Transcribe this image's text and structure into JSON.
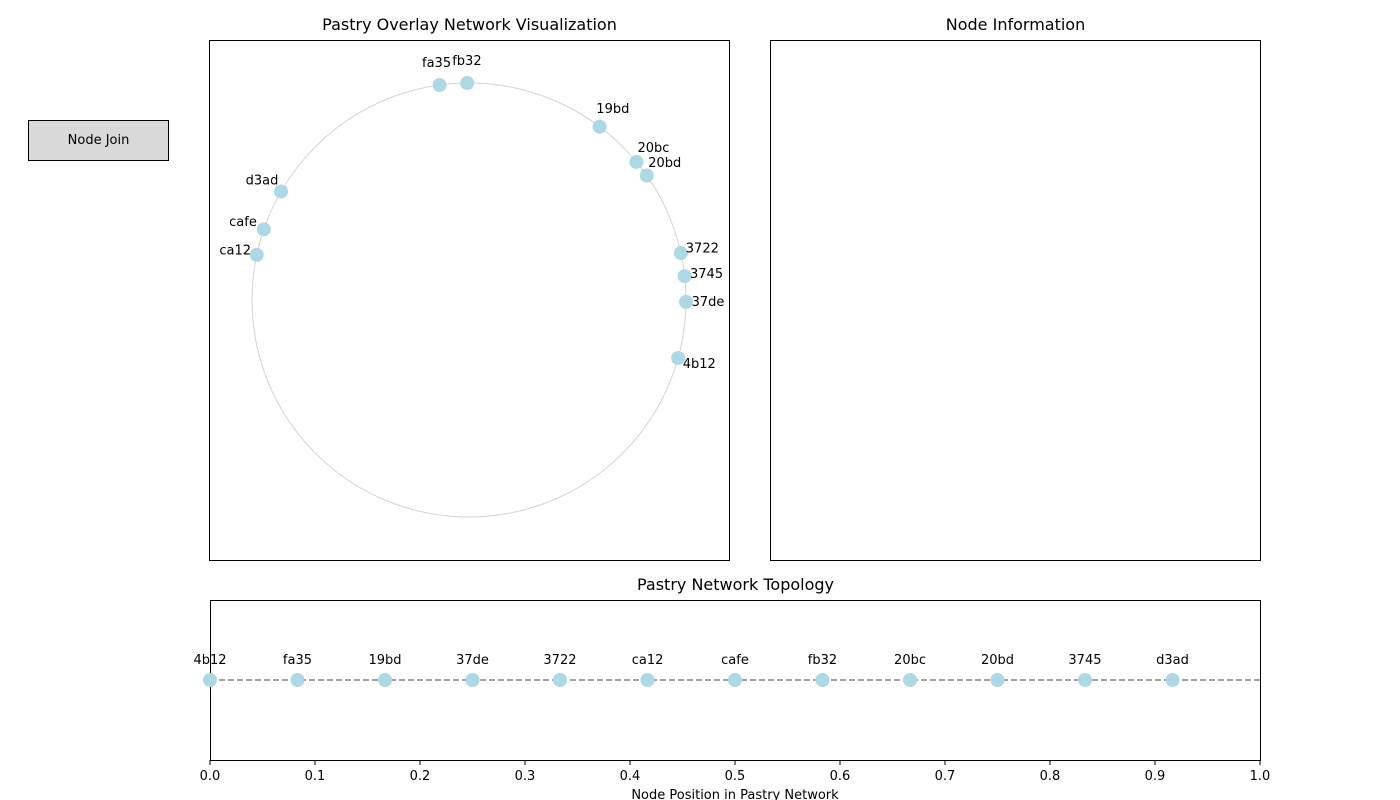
{
  "controls": {
    "node_join_label": "Node Join"
  },
  "panels": {
    "ring_title": "Pastry Overlay Network Visualization",
    "info_title": "Node Information",
    "topology_title": "Pastry Network Topology"
  },
  "chart_data": [
    {
      "type": "scatter",
      "title": "Pastry Overlay Network Visualization",
      "layout": "ring",
      "grid": false,
      "ring_color": "#d3d3d3",
      "node_color": "#add8e6",
      "nodes": [
        {
          "id": "fb32",
          "angle_deg": 90.5
        },
        {
          "id": "fa35",
          "angle_deg": 97.8
        },
        {
          "id": "19bd",
          "angle_deg": 53.0
        },
        {
          "id": "20bc",
          "angle_deg": 39.5
        },
        {
          "id": "20bd",
          "angle_deg": 35.0
        },
        {
          "id": "3722",
          "angle_deg": 12.5
        },
        {
          "id": "3745",
          "angle_deg": 6.3
        },
        {
          "id": "37de",
          "angle_deg": -0.5
        },
        {
          "id": "4b12",
          "angle_deg": -15.5
        },
        {
          "id": "d3ad",
          "angle_deg": 150.0
        },
        {
          "id": "cafe",
          "angle_deg": 161.0
        },
        {
          "id": "ca12",
          "angle_deg": 168.0
        }
      ]
    },
    {
      "type": "scatter",
      "title": "Pastry Network Topology",
      "xlabel": "Node Position in Pastry Network",
      "ylabel": "",
      "xlim": [
        0,
        1
      ],
      "xticks": [
        "0.0",
        "0.1",
        "0.2",
        "0.3",
        "0.4",
        "0.5",
        "0.6",
        "0.7",
        "0.8",
        "0.9",
        "1.0"
      ],
      "grid": false,
      "line_style": "dashed",
      "line_color": "#808080",
      "node_color": "#add8e6",
      "points": [
        {
          "label": "4b12",
          "x": 0.0
        },
        {
          "label": "fa35",
          "x": 0.0833
        },
        {
          "label": "19bd",
          "x": 0.1667
        },
        {
          "label": "37de",
          "x": 0.25
        },
        {
          "label": "3722",
          "x": 0.3333
        },
        {
          "label": "ca12",
          "x": 0.4167
        },
        {
          "label": "cafe",
          "x": 0.5
        },
        {
          "label": "fb32",
          "x": 0.5833
        },
        {
          "label": "20bc",
          "x": 0.6667
        },
        {
          "label": "20bd",
          "x": 0.75
        },
        {
          "label": "3745",
          "x": 0.8333
        },
        {
          "label": "d3ad",
          "x": 0.9167
        }
      ]
    }
  ]
}
